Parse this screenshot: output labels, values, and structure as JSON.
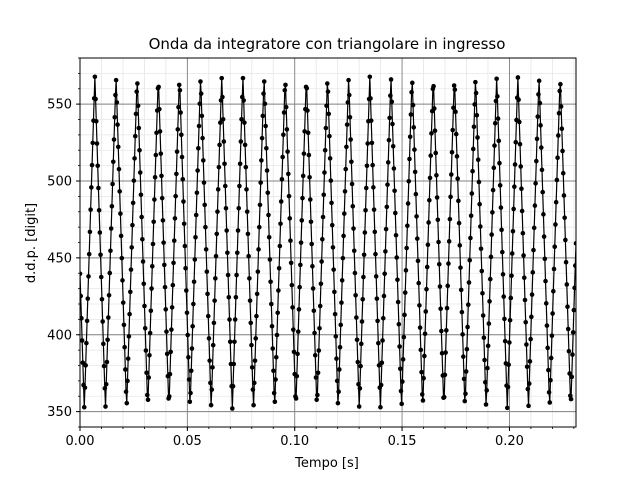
{
  "chart_data": {
    "type": "line",
    "title": "Onda da integratore con triangolare in ingresso",
    "xlabel": "Tempo [s]",
    "ylabel": "d.d.p. [digit]",
    "xlim": [
      0.0,
      0.231
    ],
    "ylim": [
      340,
      580
    ],
    "x_major_ticks": [
      0.0,
      0.05,
      0.1,
      0.15,
      0.2
    ],
    "x_tick_labels": [
      "0.00",
      "0.05",
      "0.10",
      "0.15",
      "0.20"
    ],
    "x_minor_step": 0.01,
    "y_major_ticks": [
      350,
      400,
      450,
      500,
      550
    ],
    "y_tick_labels": [
      "350",
      "400",
      "450",
      "500",
      "550"
    ],
    "y_minor_step": 10,
    "grid": "major-and-minor",
    "series": [
      {
        "marker": "circle",
        "color": "#000000",
        "period": 0.00985,
        "phase": 0.002,
        "min": 352,
        "max": 568,
        "sample_interval": 0.00033,
        "t_start": 0.0,
        "t_end": 0.231
      }
    ]
  }
}
